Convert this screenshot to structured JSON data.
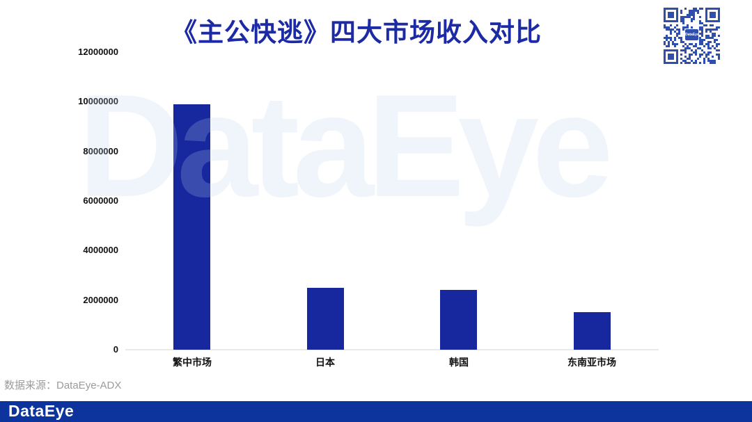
{
  "title": "《主公快逃》四大市场收入对比",
  "source_note": "数据来源：DataEye-ADX",
  "watermark": "DataEye",
  "qr": {
    "center_label": "DataEye"
  },
  "footer": {
    "logo": "DataEye"
  },
  "colors": {
    "title": "#1C2BA5",
    "bar": "#17289E",
    "footer_bar": "#0D349C",
    "qr_blue": "#2E4FAE",
    "watermark_blue": "#F0F5FB",
    "axis_line": "#E9E9E9",
    "tick_text": "#111111",
    "source_text": "#9B9B9B"
  },
  "chart_data": {
    "type": "bar",
    "title": "《主公快逃》四大市场收入对比",
    "categories": [
      "繁中市场",
      "日本",
      "韩国",
      "东南亚市场"
    ],
    "values": [
      9900000,
      2500000,
      2400000,
      1500000
    ],
    "xlabel": "",
    "ylabel": "",
    "ylim": [
      0,
      12000000
    ],
    "yticks": [
      0,
      2000000,
      4000000,
      6000000,
      8000000,
      10000000,
      12000000
    ],
    "grid": false,
    "legend": null
  }
}
